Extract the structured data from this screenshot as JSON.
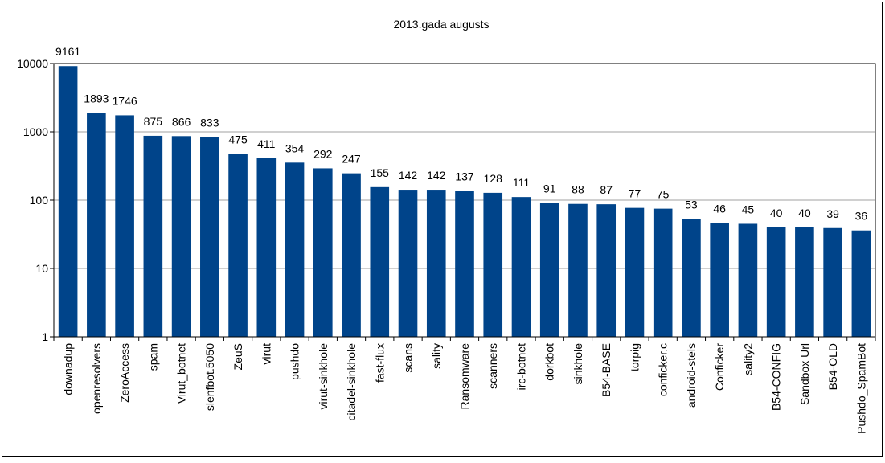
{
  "chart_data": {
    "type": "bar",
    "title": "2013.gada augusts",
    "xlabel": "",
    "ylabel": "",
    "scale": "log",
    "ylim": [
      1,
      10000
    ],
    "y_ticks": [
      "1",
      "10",
      "100",
      "1000",
      "10000"
    ],
    "grid": "horizontal",
    "legend": "none",
    "bar_color": "#00448A",
    "categories": [
      "downadup",
      "openresolvers",
      "ZeroAccess",
      "spam",
      "Virut_botnet",
      "slenfbot.5050",
      "ZeuS",
      "virut",
      "pushdo",
      "virut-sinkhole",
      "citadel-sinkhole",
      "fast-flux",
      "scans",
      "sality",
      "Ransomware",
      "scanners",
      "irc-botnet",
      "dorkbot",
      "sinkhole",
      "B54-BASE",
      "torpig",
      "conficker.c",
      "android-stels",
      "Conficker",
      "sality2",
      "B54-CONFIG",
      "Sandbox Url",
      "B54-OLD",
      "Pushdo_SpamBot"
    ],
    "values": [
      9161,
      1893,
      1746,
      875,
      866,
      833,
      475,
      411,
      354,
      292,
      247,
      155,
      142,
      142,
      137,
      128,
      111,
      91,
      88,
      87,
      77,
      75,
      53,
      46,
      45,
      40,
      40,
      39,
      36
    ]
  }
}
